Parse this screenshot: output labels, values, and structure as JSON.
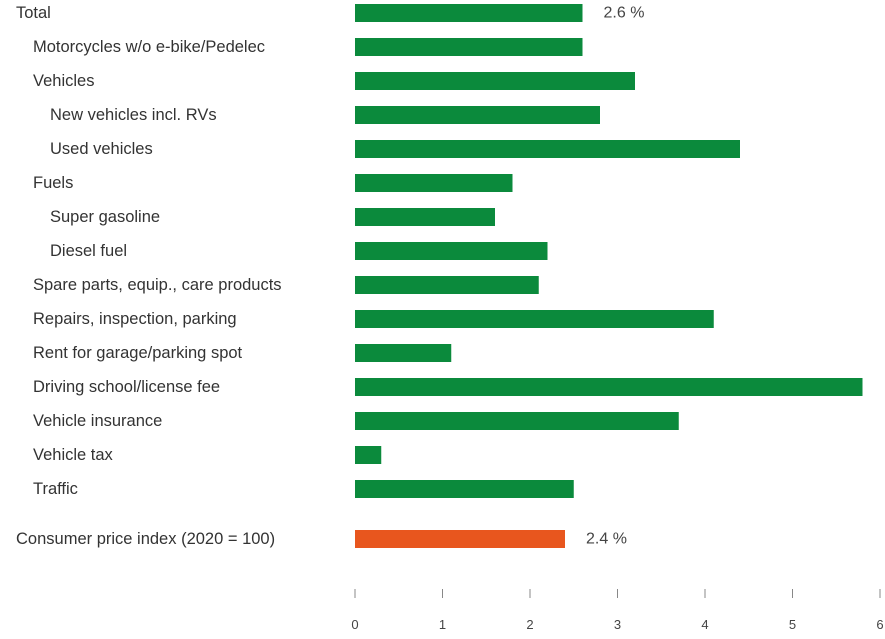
{
  "chart_data": {
    "type": "bar",
    "orientation": "horizontal",
    "categories": [
      "Total",
      "Motorcycles w/o e-bike/Pedelec",
      "Vehicles",
      "New vehicles incl. RVs",
      "Used vehicles",
      "Fuels",
      "Super gasoline",
      "Diesel fuel",
      "Spare parts, equip., care products",
      "Repairs, inspection, parking",
      "Rent for garage/parking spot",
      "Driving school/license fee",
      "Vehicle insurance",
      "Vehicle tax",
      "Traffic",
      "Consumer price index (2020 = 100)"
    ],
    "indent_levels": [
      0,
      1,
      1,
      2,
      2,
      1,
      2,
      2,
      1,
      1,
      1,
      1,
      1,
      1,
      1,
      0
    ],
    "values": [
      2.6,
      2.6,
      3.2,
      2.8,
      4.4,
      1.8,
      1.6,
      2.2,
      2.1,
      4.1,
      1.1,
      5.8,
      3.7,
      0.3,
      2.5,
      2.4
    ],
    "bar_colors": [
      "#0b8a3c",
      "#0b8a3c",
      "#0b8a3c",
      "#0b8a3c",
      "#0b8a3c",
      "#0b8a3c",
      "#0b8a3c",
      "#0b8a3c",
      "#0b8a3c",
      "#0b8a3c",
      "#0b8a3c",
      "#0b8a3c",
      "#0b8a3c",
      "#0b8a3c",
      "#0b8a3c",
      "#e8561e"
    ],
    "data_labels": [
      {
        "index": 0,
        "text": "2.6 %"
      },
      {
        "index": 15,
        "text": "2.4 %"
      }
    ],
    "xlim": [
      0,
      6
    ],
    "xticks": [
      "0",
      "1",
      "2",
      "3",
      "4",
      "5",
      "6"
    ],
    "grid": false,
    "colors": {
      "primary": "#0b8a3c",
      "highlight": "#e8561e"
    }
  }
}
